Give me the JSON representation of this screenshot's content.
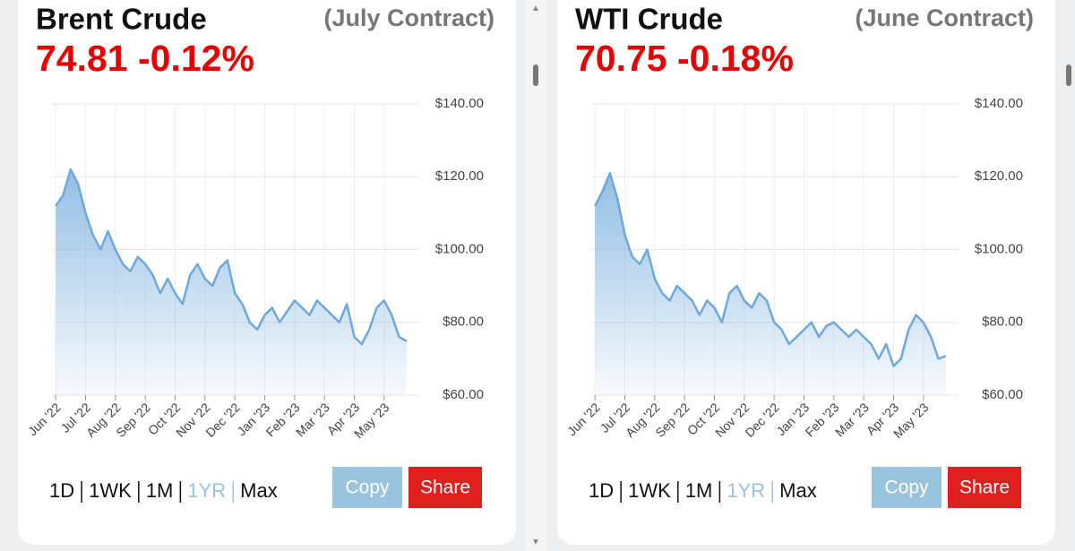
{
  "chart_data": [
    {
      "type": "area",
      "title": "Brent Crude",
      "subtitle": "(July Contract)",
      "quote": "74.81 -0.12%",
      "categories": [
        "Jun '22",
        null,
        null,
        null,
        "Jul '22",
        null,
        null,
        null,
        "Aug '22",
        null,
        null,
        null,
        "Sep '22",
        null,
        null,
        null,
        "Oct '22",
        null,
        null,
        null,
        "Nov '22",
        null,
        null,
        null,
        "Dec '22",
        null,
        null,
        null,
        "Jan '23",
        null,
        null,
        null,
        "Feb '23",
        null,
        null,
        null,
        "Mar '23",
        null,
        null,
        null,
        "Apr '23",
        null,
        null,
        null,
        "May '23",
        null,
        null,
        null
      ],
      "values": [
        112,
        115,
        122,
        118,
        110,
        104,
        100,
        105,
        100,
        96,
        94,
        98,
        96,
        93,
        88,
        92,
        88,
        85,
        93,
        96,
        92,
        90,
        95,
        97,
        88,
        85,
        80,
        78,
        82,
        84,
        80,
        83,
        86,
        84,
        82,
        86,
        84,
        82,
        80,
        85,
        76,
        74,
        78,
        84,
        86,
        82,
        76,
        74.81
      ],
      "color": "#6fa8dc",
      "ylim": [
        60,
        140
      ],
      "yticks": [
        {
          "value": 60,
          "label": "$60.00"
        },
        {
          "value": 80,
          "label": "$80.00"
        },
        {
          "value": 100,
          "label": "$100.00"
        },
        {
          "value": 120,
          "label": "$120.00"
        },
        {
          "value": 140,
          "label": "$140.00"
        }
      ],
      "grid": true,
      "ranges": [
        "1D",
        "1WK",
        "1M",
        "1YR",
        "Max"
      ],
      "active_range": 3,
      "buttons": [
        "Copy",
        "Share"
      ]
    },
    {
      "type": "area",
      "title": "WTI Crude",
      "subtitle": "(June Contract)",
      "quote": "70.75 -0.18%",
      "categories": [
        "Jun '22",
        null,
        null,
        null,
        "Jul '22",
        null,
        null,
        null,
        "Aug '22",
        null,
        null,
        null,
        "Sep '22",
        null,
        null,
        null,
        "Oct '22",
        null,
        null,
        null,
        "Nov '22",
        null,
        null,
        null,
        "Dec '22",
        null,
        null,
        null,
        "Jan '23",
        null,
        null,
        null,
        "Feb '23",
        null,
        null,
        null,
        "Mar '23",
        null,
        null,
        null,
        "Apr '23",
        null,
        null,
        null,
        "May '23",
        null,
        null,
        null
      ],
      "values": [
        112,
        116,
        121,
        114,
        104,
        98,
        96,
        100,
        92,
        88,
        86,
        90,
        88,
        86,
        82,
        86,
        84,
        80,
        88,
        90,
        86,
        84,
        88,
        86,
        80,
        78,
        74,
        76,
        78,
        80,
        76,
        79,
        80,
        78,
        76,
        78,
        76,
        74,
        70,
        74,
        68,
        70,
        78,
        82,
        80,
        76,
        70,
        70.75
      ],
      "color": "#6fa8dc",
      "ylim": [
        60,
        140
      ],
      "yticks": [
        {
          "value": 60,
          "label": "$60.00"
        },
        {
          "value": 80,
          "label": "$80.00"
        },
        {
          "value": 100,
          "label": "$100.00"
        },
        {
          "value": 120,
          "label": "$120.00"
        },
        {
          "value": 140,
          "label": "$140.00"
        }
      ],
      "grid": true,
      "ranges": [
        "1D",
        "1WK",
        "1M",
        "1YR",
        "Max"
      ],
      "active_range": 3,
      "buttons": [
        "Copy",
        "Share"
      ]
    }
  ]
}
